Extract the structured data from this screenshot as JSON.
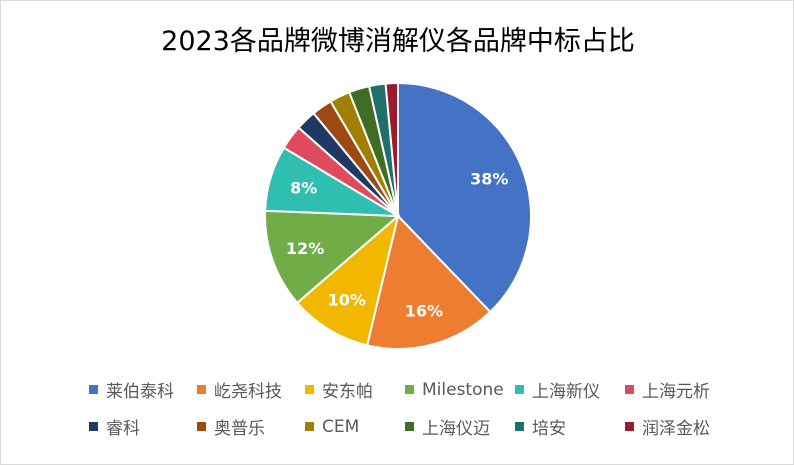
{
  "chart_data": {
    "type": "pie",
    "title": "2023各品牌微博消解仪各品牌中标占比",
    "legend_position": "bottom",
    "slices": [
      {
        "name": "莱伯泰科",
        "value": 38,
        "label": "38%",
        "color": "#4472c4"
      },
      {
        "name": "屹尧科技",
        "value": 16,
        "label": "16%",
        "color": "#ed7d31"
      },
      {
        "name": "安东帕",
        "value": 10,
        "label": "10%",
        "color": "#f2b800"
      },
      {
        "name": "Milestone",
        "value": 12,
        "label": "12%",
        "color": "#70ad47"
      },
      {
        "name": "上海新仪",
        "value": 8,
        "label": "8%",
        "color": "#2ebfb0"
      },
      {
        "name": "上海元析",
        "value": 3,
        "label": "",
        "color": "#e04a5f"
      },
      {
        "name": "睿科",
        "value": 2.5,
        "label": "",
        "color": "#203864"
      },
      {
        "name": "奥普乐",
        "value": 2.5,
        "label": "",
        "color": "#9c4a12"
      },
      {
        "name": "CEM",
        "value": 2.5,
        "label": "",
        "color": "#a08000"
      },
      {
        "name": "上海仪迈",
        "value": 2.5,
        "label": "",
        "color": "#3f6e22"
      },
      {
        "name": "培安",
        "value": 2,
        "label": "",
        "color": "#1f6f6b"
      },
      {
        "name": "润泽金松",
        "value": 1.5,
        "label": "",
        "color": "#9b1b30"
      }
    ]
  }
}
